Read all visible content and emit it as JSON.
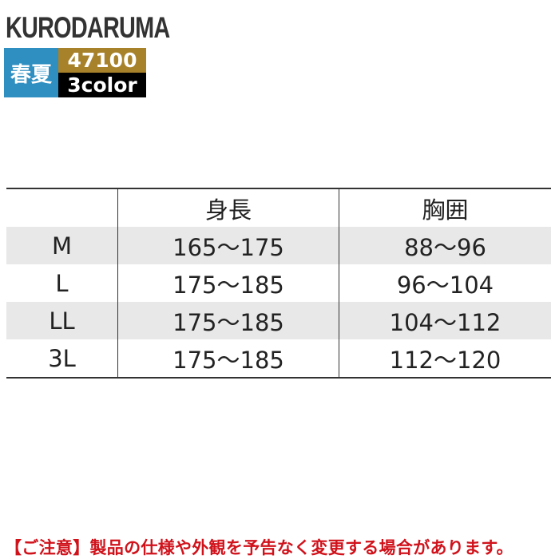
{
  "brand": {
    "logo": "KURODARUMA",
    "season": "春夏",
    "product_code": "47100",
    "colors": "3color"
  },
  "size_table": {
    "headers": [
      "",
      "身長",
      "胸囲"
    ],
    "rows": [
      {
        "size": "M",
        "height": "165〜175",
        "chest": "88〜96"
      },
      {
        "size": "L",
        "height": "175〜185",
        "chest": "96〜104"
      },
      {
        "size": "LL",
        "height": "175〜185",
        "chest": "104〜112"
      },
      {
        "size": "3L",
        "height": "175〜185",
        "chest": "112〜120"
      }
    ]
  },
  "notice": "【ご注意】製品の仕様や外観を予告なく変更する場合があります。"
}
